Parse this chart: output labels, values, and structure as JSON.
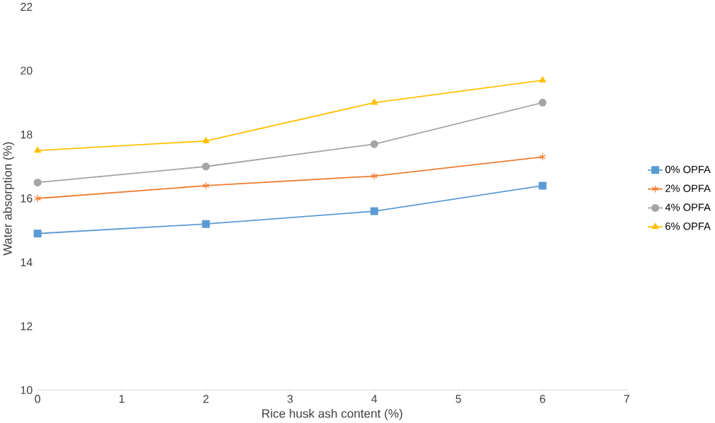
{
  "chart_data": {
    "type": "line",
    "xlabel": "Rice husk ash content (%)",
    "ylabel": "Water absorption (%)",
    "x": [
      0,
      2,
      4,
      6
    ],
    "series": [
      {
        "name": "0% OPFA",
        "color": "#5b9bd5",
        "marker": "square",
        "values": [
          14.9,
          15.2,
          15.6,
          16.4
        ]
      },
      {
        "name": "2% OPFA",
        "color": "#ed7d31",
        "marker": "cross",
        "values": [
          16.0,
          16.4,
          16.7,
          17.3
        ]
      },
      {
        "name": "4% OPFA",
        "color": "#a5a5a5",
        "marker": "circle",
        "values": [
          16.5,
          17.0,
          17.7,
          19.0
        ]
      },
      {
        "name": "6% OPFA",
        "color": "#ffc000",
        "marker": "triangle",
        "values": [
          17.5,
          17.8,
          19.0,
          19.7
        ]
      }
    ],
    "xlim": [
      0,
      7
    ],
    "xticks": [
      0,
      1,
      2,
      3,
      4,
      5,
      6,
      7
    ],
    "ylim": [
      10,
      22
    ],
    "yticks": [
      10,
      12,
      14,
      16,
      18,
      20,
      22
    ],
    "grid": false,
    "legend": "right",
    "line_style": "solid"
  }
}
